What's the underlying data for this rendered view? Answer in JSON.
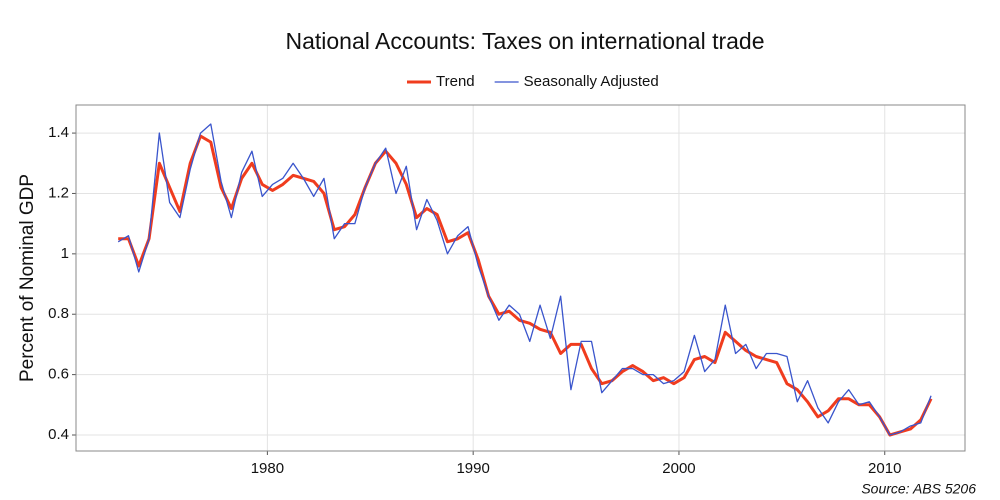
{
  "chart_data": {
    "type": "line",
    "title": "National Accounts: Taxes on international trade",
    "y_label": "Percent of Nominal GDP",
    "source": "Source: ABS 5206",
    "legend": "top",
    "grid": true,
    "xlim": [
      1970.7,
      2013.9
    ],
    "xticks": [
      1980,
      1990,
      2000,
      2010
    ],
    "ylim": [
      0.347,
      1.493
    ],
    "yticks": [
      0.4,
      0.6,
      0.8,
      1.0,
      1.2,
      1.4
    ],
    "x": [
      1972.75,
      1973.25,
      1973.75,
      1974.25,
      1974.75,
      1975.25,
      1975.75,
      1976.25,
      1976.75,
      1977.25,
      1977.75,
      1978.25,
      1978.75,
      1979.25,
      1979.75,
      1980.25,
      1980.75,
      1981.25,
      1981.75,
      1982.25,
      1982.75,
      1983.25,
      1983.75,
      1984.25,
      1984.75,
      1985.25,
      1985.75,
      1986.25,
      1986.75,
      1987.25,
      1987.75,
      1988.25,
      1988.75,
      1989.25,
      1989.75,
      1990.25,
      1990.75,
      1991.25,
      1991.75,
      1992.25,
      1992.75,
      1993.25,
      1993.75,
      1994.25,
      1994.75,
      1995.25,
      1995.75,
      1996.25,
      1996.75,
      1997.25,
      1997.75,
      1998.25,
      1998.75,
      1999.25,
      1999.75,
      2000.25,
      2000.75,
      2001.25,
      2001.75,
      2002.25,
      2002.75,
      2003.25,
      2003.75,
      2004.25,
      2004.75,
      2005.25,
      2005.75,
      2006.25,
      2006.75,
      2007.25,
      2007.75,
      2008.25,
      2008.75,
      2009.25,
      2009.75,
      2010.25,
      2010.75,
      2011.25,
      2011.75,
      2012.25
    ],
    "series": [
      {
        "name": "Trend",
        "color": "#f03c1e",
        "width": 3,
        "values": [
          1.05,
          1.05,
          0.96,
          1.05,
          1.3,
          1.22,
          1.14,
          1.3,
          1.39,
          1.37,
          1.22,
          1.15,
          1.25,
          1.3,
          1.23,
          1.21,
          1.23,
          1.26,
          1.25,
          1.24,
          1.2,
          1.08,
          1.09,
          1.13,
          1.22,
          1.3,
          1.34,
          1.3,
          1.23,
          1.12,
          1.15,
          1.13,
          1.04,
          1.05,
          1.07,
          0.98,
          0.86,
          0.8,
          0.81,
          0.78,
          0.77,
          0.75,
          0.74,
          0.67,
          0.7,
          0.7,
          0.62,
          0.57,
          0.58,
          0.61,
          0.63,
          0.61,
          0.58,
          0.59,
          0.57,
          0.59,
          0.65,
          0.66,
          0.64,
          0.74,
          0.71,
          0.68,
          0.66,
          0.65,
          0.64,
          0.57,
          0.55,
          0.51,
          0.46,
          0.48,
          0.52,
          0.52,
          0.5,
          0.5,
          0.46,
          0.4,
          0.41,
          0.42,
          0.45,
          0.52
        ]
      },
      {
        "name": "Seasonally Adjusted",
        "color": "#3a55cc",
        "width": 1.3,
        "values": [
          1.04,
          1.06,
          0.94,
          1.05,
          1.4,
          1.17,
          1.12,
          1.28,
          1.4,
          1.43,
          1.24,
          1.12,
          1.27,
          1.34,
          1.19,
          1.23,
          1.25,
          1.3,
          1.25,
          1.19,
          1.25,
          1.05,
          1.1,
          1.1,
          1.22,
          1.3,
          1.35,
          1.2,
          1.29,
          1.08,
          1.18,
          1.11,
          1.0,
          1.06,
          1.09,
          0.96,
          0.86,
          0.78,
          0.83,
          0.8,
          0.71,
          0.83,
          0.72,
          0.86,
          0.55,
          0.71,
          0.71,
          0.54,
          0.58,
          0.62,
          0.62,
          0.6,
          0.6,
          0.57,
          0.58,
          0.61,
          0.73,
          0.61,
          0.65,
          0.83,
          0.67,
          0.7,
          0.62,
          0.67,
          0.67,
          0.66,
          0.51,
          0.58,
          0.49,
          0.44,
          0.51,
          0.55,
          0.5,
          0.51,
          0.46,
          0.4,
          0.41,
          0.43,
          0.44,
          0.53
        ]
      }
    ]
  }
}
